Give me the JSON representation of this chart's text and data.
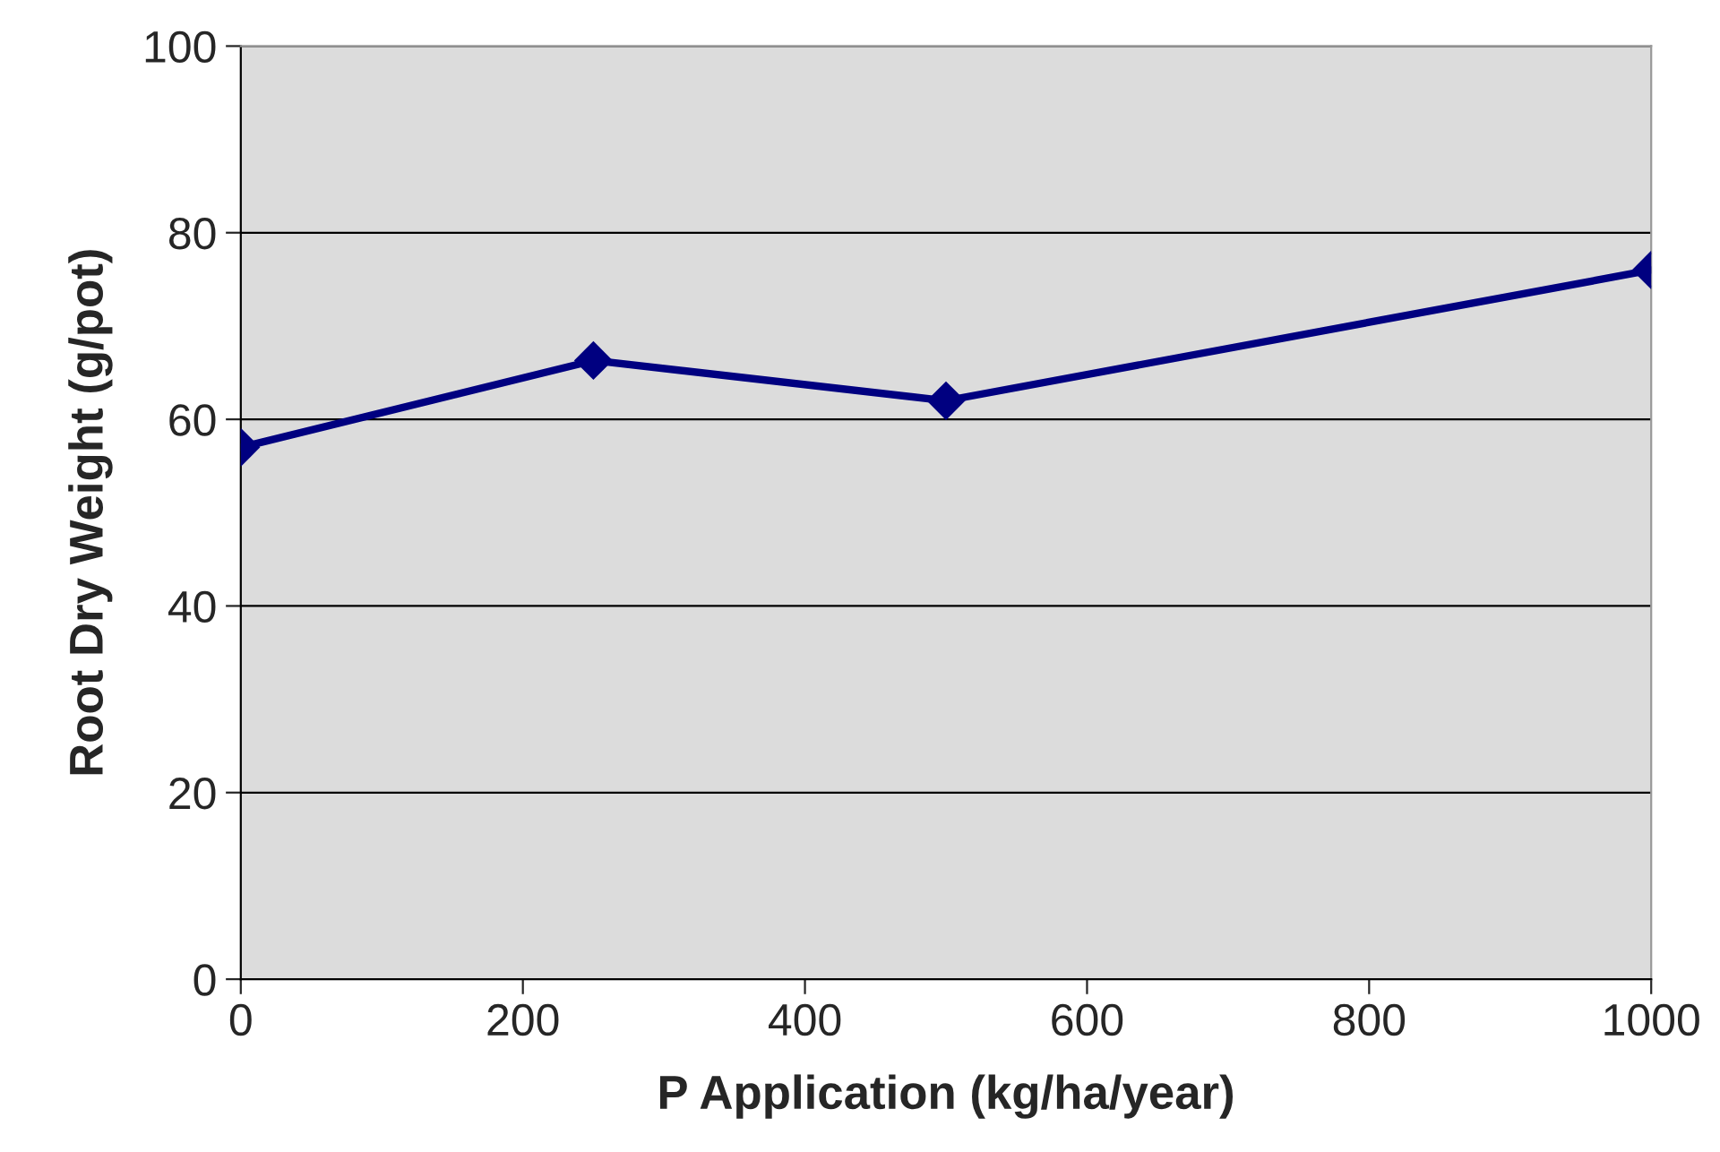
{
  "chart_data": {
    "type": "line",
    "xlabel": "P Application (kg/ha/year)",
    "ylabel": "Root Dry Weight (g/pot)",
    "x": [
      0,
      250,
      500,
      1000
    ],
    "series": [
      {
        "color": "#000080",
        "values": [
          57,
          66.3,
          62,
          76
        ]
      }
    ],
    "xlim": [
      0,
      1000
    ],
    "xticks": [
      0,
      200,
      400,
      600,
      800,
      1000
    ],
    "ylim": [
      0,
      100
    ],
    "yticks": [
      0,
      20,
      40,
      60,
      80,
      100
    ],
    "grid": "y",
    "legend": false,
    "marker": "diamond",
    "line_style": "solid"
  }
}
